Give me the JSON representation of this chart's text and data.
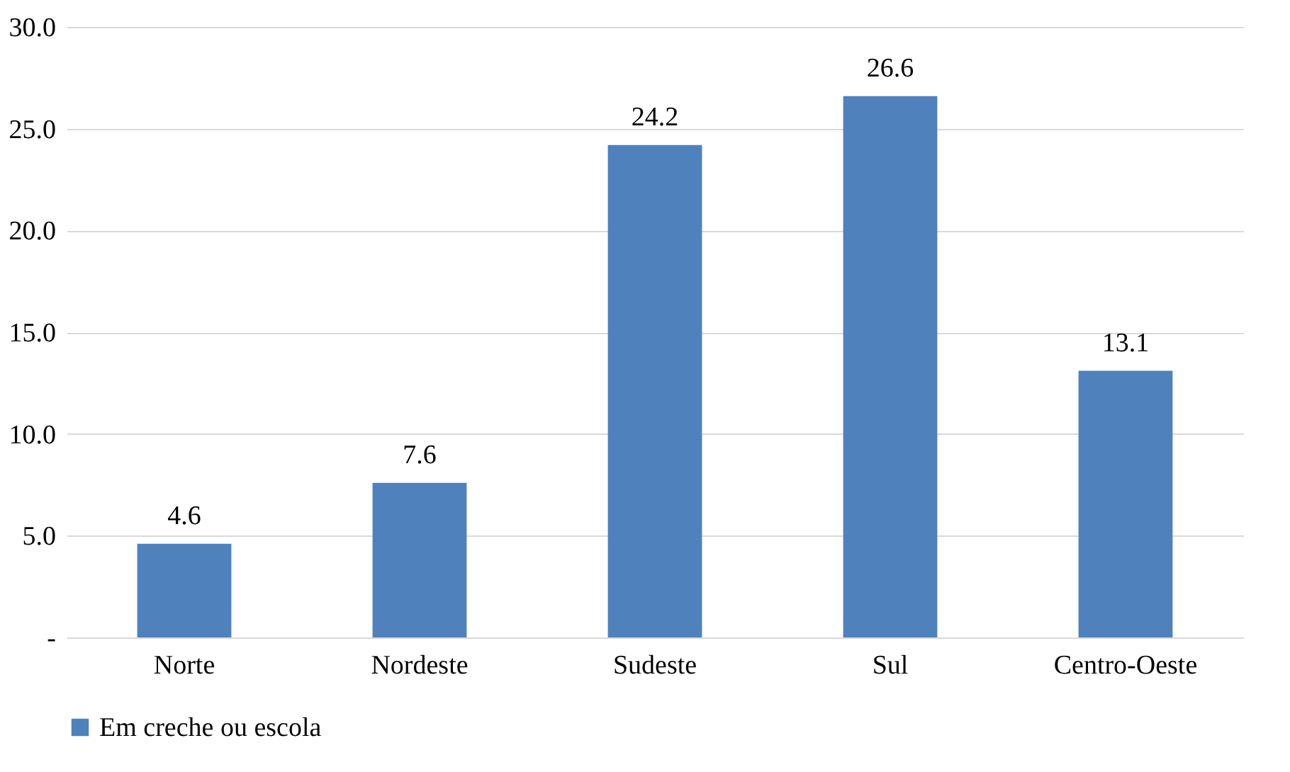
{
  "chart_data": {
    "type": "bar",
    "categories": [
      "Norte",
      "Nordeste",
      "Sudeste",
      "Sul",
      "Centro-Oeste"
    ],
    "series": [
      {
        "name": "Em creche ou escola",
        "color": "#4f81bd",
        "values": [
          4.6,
          7.6,
          24.2,
          26.6,
          13.1
        ]
      }
    ],
    "ylim": [
      0,
      30
    ],
    "yticks": [
      {
        "value": 0,
        "label": "-"
      },
      {
        "value": 5,
        "label": "5.0"
      },
      {
        "value": 10,
        "label": "10.0"
      },
      {
        "value": 15,
        "label": "15.0"
      },
      {
        "value": 20,
        "label": "20.0"
      },
      {
        "value": 25,
        "label": "25.0"
      },
      {
        "value": 30,
        "label": "30.0"
      }
    ],
    "grid": "y",
    "legend": "bottom",
    "data_labels": true
  }
}
